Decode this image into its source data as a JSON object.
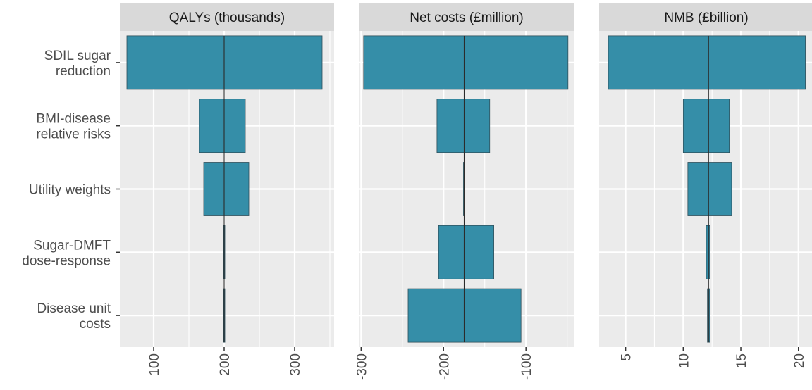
{
  "chart_data": {
    "type": "bar",
    "subtype": "tornado",
    "categories": [
      [
        "SDIL sugar",
        "reduction"
      ],
      [
        "BMI-disease",
        "relative risks"
      ],
      [
        "Utility weights"
      ],
      [
        "Sugar-DMFT",
        "dose-response"
      ],
      [
        "Disease unit",
        "costs"
      ]
    ],
    "bar_color": "#358EA8",
    "panels": [
      {
        "title": "QALYs (thousands)",
        "base": 200,
        "xlim": [
          52,
          356
        ],
        "ticks": [
          100,
          200,
          300
        ],
        "tick_labels": [
          "100",
          "200",
          "300"
        ],
        "bars": [
          [
            62,
            339
          ],
          [
            165,
            230
          ],
          [
            171,
            235
          ],
          [
            199,
            201
          ],
          [
            200,
            200
          ]
        ]
      },
      {
        "title": "Net costs (£million)",
        "base": -175,
        "xlim": [
          -302,
          -42
        ],
        "ticks": [
          -300,
          -200,
          -100
        ],
        "tick_labels": [
          "-300",
          "-200",
          "-100"
        ],
        "bars": [
          [
            -297,
            -49
          ],
          [
            -208,
            -144
          ],
          [
            -175,
            -175
          ],
          [
            -206,
            -139
          ],
          [
            -243,
            -106
          ]
        ]
      },
      {
        "title": "NMB (£billion)",
        "base": 12.2,
        "xlim": [
          2.7,
          21.3
        ],
        "ticks": [
          5,
          10,
          15,
          20
        ],
        "tick_labels": [
          "5",
          "10",
          "15",
          "20"
        ],
        "bars": [
          [
            3.5,
            20.6
          ],
          [
            10.0,
            14.0
          ],
          [
            10.4,
            14.2
          ],
          [
            12.0,
            12.3
          ],
          [
            12.1,
            12.3
          ]
        ]
      }
    ],
    "grid": true,
    "xlabel": "",
    "ylabel": ""
  }
}
